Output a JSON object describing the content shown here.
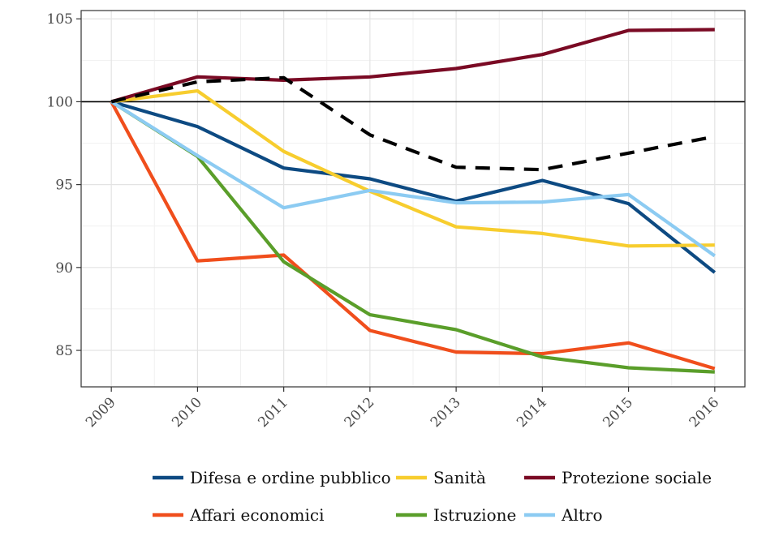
{
  "chart_data": {
    "type": "line",
    "title": "",
    "xlabel": "",
    "ylabel": "",
    "x": [
      "2009",
      "2010",
      "2011",
      "2012",
      "2013",
      "2014",
      "2015",
      "2016"
    ],
    "ylim": [
      82.8,
      105.5
    ],
    "yticks": [
      85,
      90,
      95,
      100,
      105
    ],
    "grid": true,
    "reference_line": 100,
    "legend_position": "bottom",
    "series": [
      {
        "name": "Difesa e ordine pubblico",
        "color": "#0d4a82",
        "dash": "solid",
        "values": [
          100,
          98.5,
          96.0,
          95.35,
          94.0,
          95.25,
          93.85,
          89.7
        ]
      },
      {
        "name": "Sanità",
        "color": "#f7cd2e",
        "dash": "solid",
        "values": [
          100,
          100.65,
          97.0,
          94.6,
          92.45,
          92.05,
          91.3,
          91.35
        ]
      },
      {
        "name": "Protezione sociale",
        "color": "#7a0a24",
        "dash": "solid",
        "values": [
          100,
          101.5,
          101.3,
          101.5,
          102.0,
          102.85,
          104.3,
          104.35
        ]
      },
      {
        "name": "Affari economici",
        "color": "#f04e1c",
        "dash": "solid",
        "values": [
          100,
          90.4,
          90.75,
          86.2,
          84.9,
          84.8,
          85.45,
          83.9
        ]
      },
      {
        "name": "Istruzione",
        "color": "#5a9e2a",
        "dash": "solid",
        "values": [
          100,
          96.7,
          90.35,
          87.15,
          86.25,
          84.6,
          83.95,
          83.7
        ]
      },
      {
        "name": "Altro",
        "color": "#8ccbf2",
        "dash": "solid",
        "values": [
          100,
          96.75,
          93.6,
          94.65,
          93.9,
          93.95,
          94.4,
          90.7
        ]
      },
      {
        "name": "",
        "color": "#000000",
        "dash": "dashed",
        "values": [
          100,
          101.2,
          101.45,
          98.0,
          96.05,
          95.9,
          96.9,
          97.9
        ]
      }
    ]
  }
}
